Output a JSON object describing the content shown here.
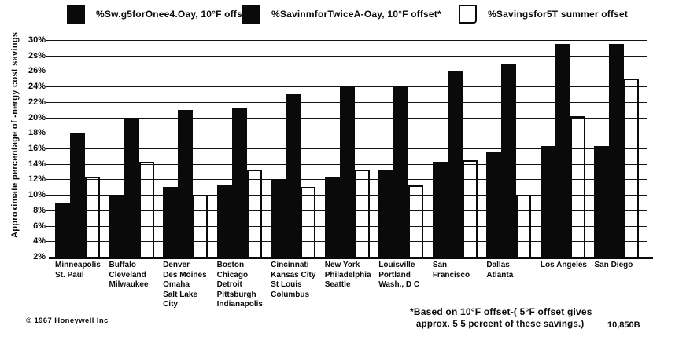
{
  "legend": {
    "items": [
      {
        "label": "%Sw.g5forOnee4.Oay,  10°F offset",
        "swatch": "black"
      },
      {
        "label": "%SavinmforTwiceA-Oay,  10°F offset*",
        "swatch": "black"
      },
      {
        "label": "%Savingsfor5T  summer offset",
        "swatch": "white"
      }
    ]
  },
  "chart_data": {
    "type": "bar",
    "title": "",
    "ylabel": "Approximate percentage of -nergy cost savings",
    "xlabel": "",
    "ylim": [
      2,
      30
    ],
    "ytick_step": 2,
    "ytick_labels_top_to_bottom": [
      "30%",
      "2s%",
      "26%",
      "24%",
      "22%",
      "20%",
      "18%",
      "16%",
      "14%",
      "12%",
      "10%",
      "8%",
      "6%",
      "4%",
      "2%"
    ],
    "grid": true,
    "legend_position": "top",
    "bar_baseline_percent": 2,
    "categories": [
      [
        "Minneapolis",
        "St. Paul"
      ],
      [
        "Buffalo",
        "Cleveland",
        "Milwaukee"
      ],
      [
        "Denver",
        "Des Moines",
        "Omaha",
        "Salt Lake",
        "  City"
      ],
      [
        "Boston",
        "Chicago",
        "Detroit",
        "Pittsburgh",
        "Indianapolis"
      ],
      [
        "Cincinnati",
        "Kansas City",
        "St Louis",
        "Columbus"
      ],
      [
        "New  York",
        "Philadelphia",
        "Seattle"
      ],
      [
        "Louisville",
        "Portland",
        "Wash., D C"
      ],
      [
        "San",
        "Francisco"
      ],
      [
        "Dallas",
        "Atlanta"
      ],
      [
        "Los Angeles"
      ],
      [
        "San Diego"
      ]
    ],
    "series": [
      {
        "name": "%Sw.g5forOnee4.Oay, 10°F offset",
        "color": "#0a0a0a",
        "fill": "solid",
        "values": [
          9,
          10,
          11,
          11.2,
          12,
          12.2,
          13.2,
          14.3,
          15.5,
          16.3,
          16.3
        ]
      },
      {
        "name": "%SavinmforTwiceA-Oay, 10°F offset*",
        "color": "#0a0a0a",
        "fill": "solid",
        "values": [
          18,
          20,
          21,
          21.2,
          23,
          24,
          24,
          26,
          27,
          29.5,
          29.5
        ]
      },
      {
        "name": "%Savingsfor5T summer offset",
        "color": "#ffffff",
        "fill": "outline",
        "values": [
          12.3,
          14.3,
          10,
          13.3,
          11,
          13.3,
          11.2,
          14.5,
          10,
          20.2,
          25
        ]
      }
    ],
    "ditto_group_index": 9,
    "ditto_mark": "”"
  },
  "footnote": {
    "line1": "*Based on 10°F offset-( 5°F offset gives",
    "line2": "approx.   5 5   percent  of  these  savings.)",
    "code": "10,850B"
  },
  "copyright": "©  1967 Honeywell Inc"
}
